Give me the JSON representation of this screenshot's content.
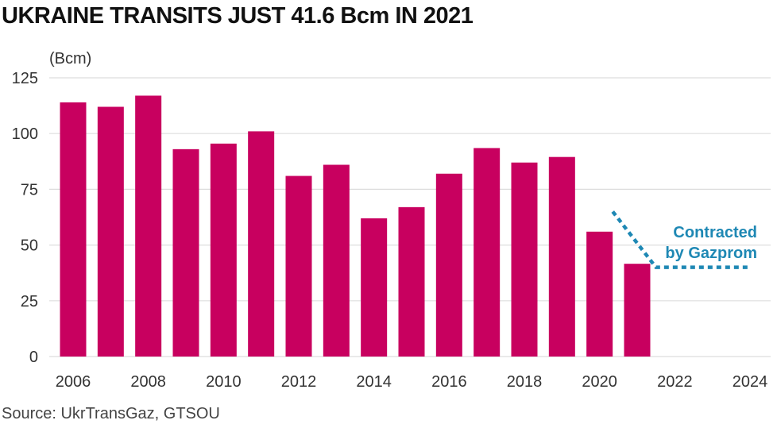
{
  "title": "UKRAINE TRANSITS JUST 41.6 Bcm IN 2021",
  "source": "Source: UkrTransGaz, GTSOU",
  "colors": {
    "bar": "#c8005f",
    "contracted": "#1e88b4",
    "grid": "#dddddd",
    "text": "#333333"
  },
  "chart_data": {
    "type": "bar",
    "title": "UKRAINE TRANSITS JUST 41.6 Bcm IN 2021",
    "unit_label": "(Bcm)",
    "ylabel": "",
    "xlabel": "",
    "ylim": [
      0,
      125
    ],
    "xlim": [
      2006,
      2024
    ],
    "grid": true,
    "y_ticks": [
      "0",
      "25",
      "50",
      "75",
      "100",
      "125"
    ],
    "x_ticks": [
      "2006",
      "2008",
      "2010",
      "2012",
      "2014",
      "2016",
      "2018",
      "2020",
      "2022",
      "2024"
    ],
    "categories": [
      2006,
      2007,
      2008,
      2009,
      2010,
      2011,
      2012,
      2013,
      2014,
      2015,
      2016,
      2017,
      2018,
      2019,
      2020,
      2021
    ],
    "values": [
      114,
      112,
      117,
      93,
      95.5,
      101,
      81,
      86,
      62,
      67,
      82,
      93.5,
      87,
      89.5,
      56,
      41.6
    ],
    "contracted": {
      "label": [
        "Contracted",
        "by Gazprom"
      ],
      "x": [
        2020.35,
        2021.5,
        2024
      ],
      "y": [
        65,
        40,
        40
      ]
    }
  }
}
